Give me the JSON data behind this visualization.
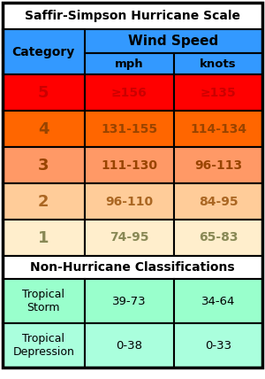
{
  "title": "Saffir-Simpson Hurricane Scale",
  "header_bg": "#3399FF",
  "header_text": "Wind Speed",
  "col_headers": [
    "mph",
    "knots"
  ],
  "category_label": "Category",
  "rows": [
    {
      "label": "5",
      "mph": "≥156",
      "knots": "≥135",
      "bg": "#FF0000",
      "text_color": "#CC0000"
    },
    {
      "label": "4",
      "mph": "131-155",
      "knots": "114-134",
      "bg": "#FF6600",
      "text_color": "#994400"
    },
    {
      "label": "3",
      "mph": "111-130",
      "knots": "96-113",
      "bg": "#FF9966",
      "text_color": "#994400"
    },
    {
      "label": "2",
      "mph": "96-110",
      "knots": "84-95",
      "bg": "#FFCC99",
      "text_color": "#AA6622"
    },
    {
      "label": "1",
      "mph": "74-95",
      "knots": "65-83",
      "bg": "#FFEECC",
      "text_color": "#888855"
    }
  ],
  "non_hurricane_title": "Non-Hurricane Classifications",
  "non_hurricane_rows": [
    {
      "label": "Tropical\nStorm",
      "mph": "39-73",
      "knots": "34-64",
      "bg": "#99FFCC",
      "text_color": "#000000"
    },
    {
      "label": "Tropical\nDepression",
      "mph": "0-38",
      "knots": "0-33",
      "bg": "#AAFFDD",
      "text_color": "#000000"
    }
  ],
  "outer_bg": "#FFFFFF",
  "border_color": "#000000",
  "title_bg": "#FFFFFF",
  "fig_w": 3.0,
  "fig_h": 4.28,
  "dpi": 100
}
